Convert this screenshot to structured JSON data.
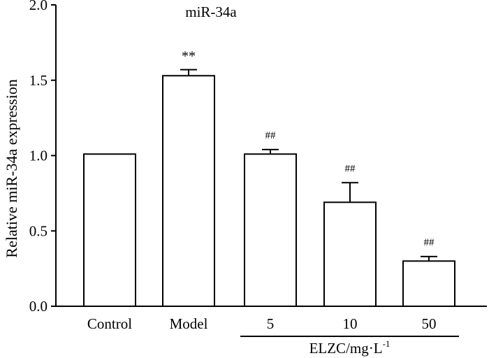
{
  "chart_data": {
    "type": "bar",
    "title": "miR-34a",
    "xlabel": "",
    "ylabel": "Relative miR-34a expression",
    "ylim": [
      0,
      2.0
    ],
    "yticks": [
      0.0,
      0.5,
      1.0,
      1.5,
      2.0
    ],
    "ytick_labels": [
      "0.0",
      "0.5",
      "1.0",
      "1.5",
      "2.0"
    ],
    "categories": [
      "Control",
      "Model",
      "5",
      "10",
      "50"
    ],
    "values": [
      1.01,
      1.53,
      1.01,
      0.69,
      0.3
    ],
    "error": [
      0.0,
      0.04,
      0.03,
      0.13,
      0.03
    ],
    "annotations": [
      "",
      "**",
      "##",
      "##",
      "##"
    ],
    "group_label": {
      "text": "ELZC/mg·L",
      "superscript": "-1",
      "span": [
        "5",
        "10",
        "50"
      ]
    },
    "bar_fill": "#ffffff",
    "bar_stroke": "#000000",
    "grid": false,
    "legend": "none"
  }
}
